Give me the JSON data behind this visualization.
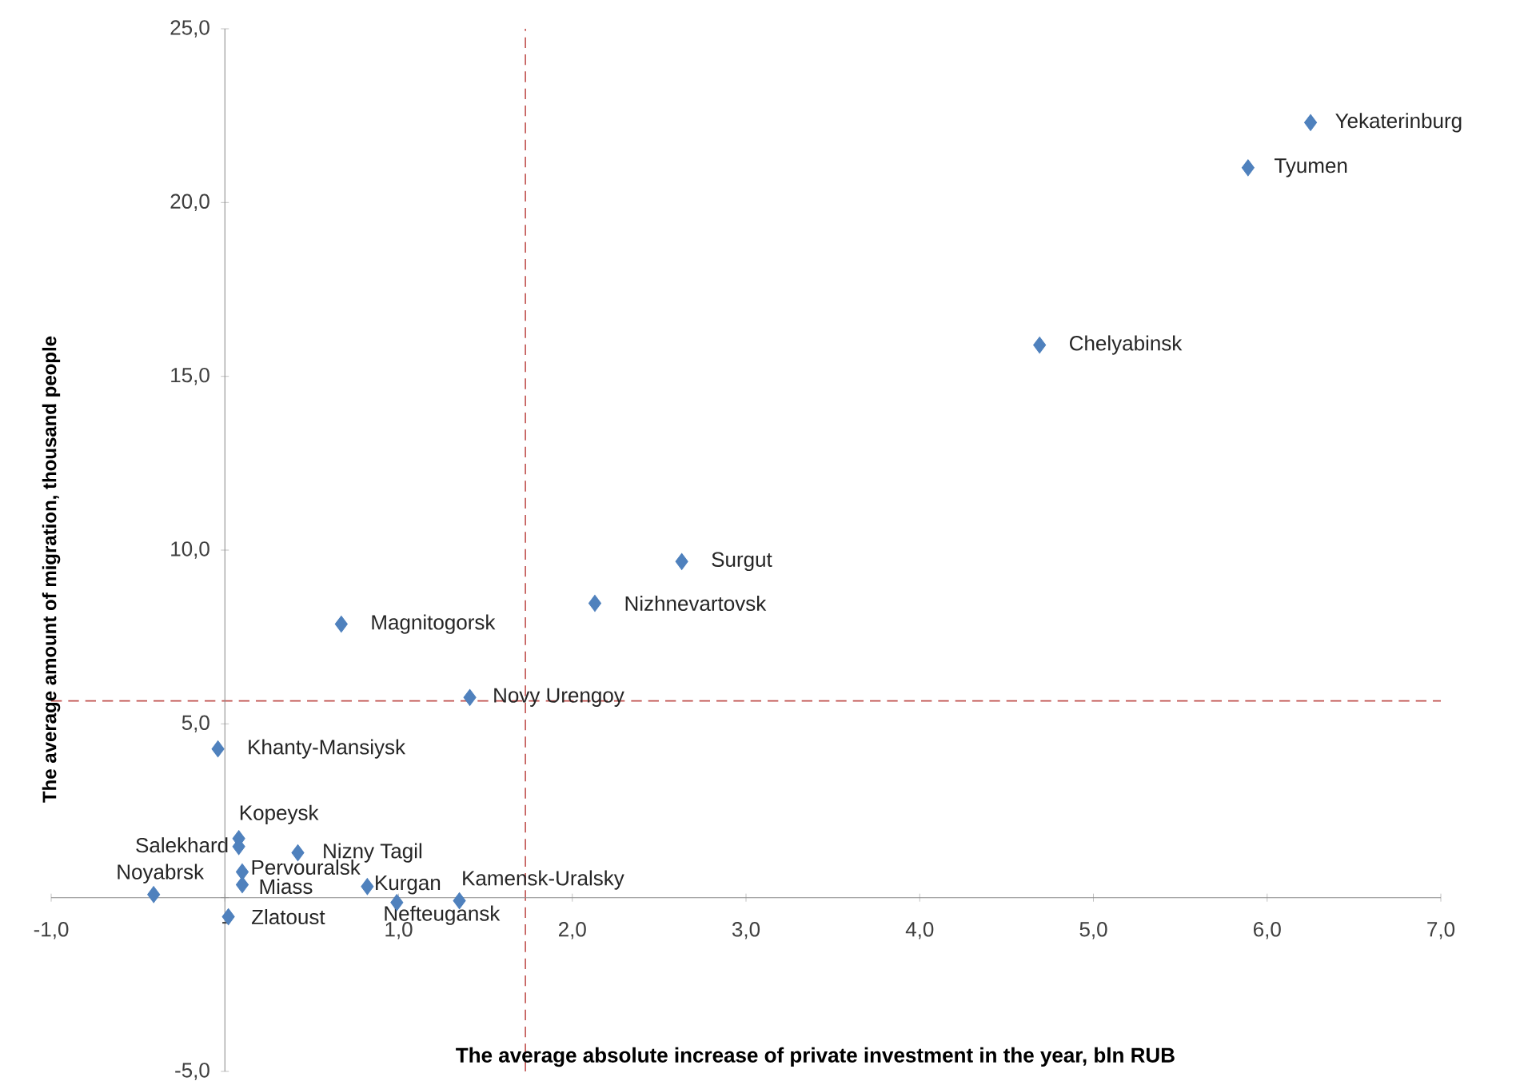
{
  "chart_data": {
    "type": "scatter",
    "xlabel": "The average absolute increase of private investment in the year, bln RUB",
    "ylabel": "The average amount of migration, thousand people",
    "x": [
      6.25,
      5.89,
      4.69,
      2.63,
      2.13,
      0.67,
      1.41,
      -0.04,
      0.08,
      0.08,
      0.42,
      0.1,
      0.1,
      0.82,
      -0.41,
      0.99,
      1.35,
      0.02
    ],
    "series": [
      {
        "color": "#4f81bd",
        "values": [
          22.3,
          21.0,
          15.9,
          9.67,
          8.47,
          7.87,
          5.76,
          4.28,
          1.7,
          1.47,
          1.29,
          0.74,
          0.37,
          0.32,
          0.09,
          -0.14,
          -0.09,
          -0.55
        ]
      }
    ],
    "marker": "diamond",
    "xlim": [
      -1,
      7
    ],
    "ylim": [
      -5,
      25
    ],
    "xticks": [
      {
        "value": -1,
        "label": "-1,0"
      },
      {
        "value": 0,
        "label": "-"
      },
      {
        "value": 1,
        "label": "1,0"
      },
      {
        "value": 2,
        "label": "2,0"
      },
      {
        "value": 3,
        "label": "3,0"
      },
      {
        "value": 4,
        "label": "4,0"
      },
      {
        "value": 5,
        "label": "5,0"
      },
      {
        "value": 6,
        "label": "6,0"
      },
      {
        "value": 7,
        "label": "7,0"
      }
    ],
    "yticks": [
      {
        "value": -5,
        "label": "-5,0"
      },
      {
        "value": 0,
        "label": null
      },
      {
        "value": 5,
        "label": "5,0"
      },
      {
        "value": 10,
        "label": "10,0"
      },
      {
        "value": 15,
        "label": "15,0"
      },
      {
        "value": 20,
        "label": "20,0"
      },
      {
        "value": 25,
        "label": "25,0"
      }
    ],
    "ref_lines": [
      {
        "axis": "x",
        "value": 1.73,
        "color": "#c0504d",
        "line_style": "dashed"
      },
      {
        "axis": "y",
        "value": 5.66,
        "color": "#c0504d",
        "line_style": "dashed"
      }
    ],
    "annotations": [
      {
        "text": "Yekaterinburg",
        "x": 6.25,
        "y": 22.3
      },
      {
        "text": "Tyumen",
        "x": 5.89,
        "y": 21.0
      },
      {
        "text": "Chelyabinsk",
        "x": 4.69,
        "y": 15.9
      },
      {
        "text": "Surgut",
        "x": 2.63,
        "y": 9.67
      },
      {
        "text": "Nizhnevartovsk",
        "x": 2.13,
        "y": 8.47
      },
      {
        "text": "Magnitogorsk",
        "x": 0.67,
        "y": 7.87
      },
      {
        "text": "Novy Urengoy",
        "x": 1.41,
        "y": 5.76
      },
      {
        "text": "Khanty-Mansiysk",
        "x": -0.04,
        "y": 4.28
      },
      {
        "text": "Kopeysk",
        "x": 0.08,
        "y": 1.7
      },
      {
        "text": "Salekhard",
        "x": 0.08,
        "y": 1.47
      },
      {
        "text": "Nizny Tagil",
        "x": 0.42,
        "y": 1.29
      },
      {
        "text": "Pervouralsk",
        "x": 0.1,
        "y": 0.74
      },
      {
        "text": "Miass",
        "x": 0.1,
        "y": 0.37
      },
      {
        "text": "Kurgan",
        "x": 0.82,
        "y": 0.32
      },
      {
        "text": "Noyabrsk",
        "x": -0.41,
        "y": 0.09
      },
      {
        "text": "Nefteugansk",
        "x": 0.99,
        "y": -0.14
      },
      {
        "text": "Kamensk-Uralsky",
        "x": 1.35,
        "y": -0.09
      },
      {
        "text": "Zlatoust",
        "x": 0.02,
        "y": -0.55
      }
    ]
  }
}
